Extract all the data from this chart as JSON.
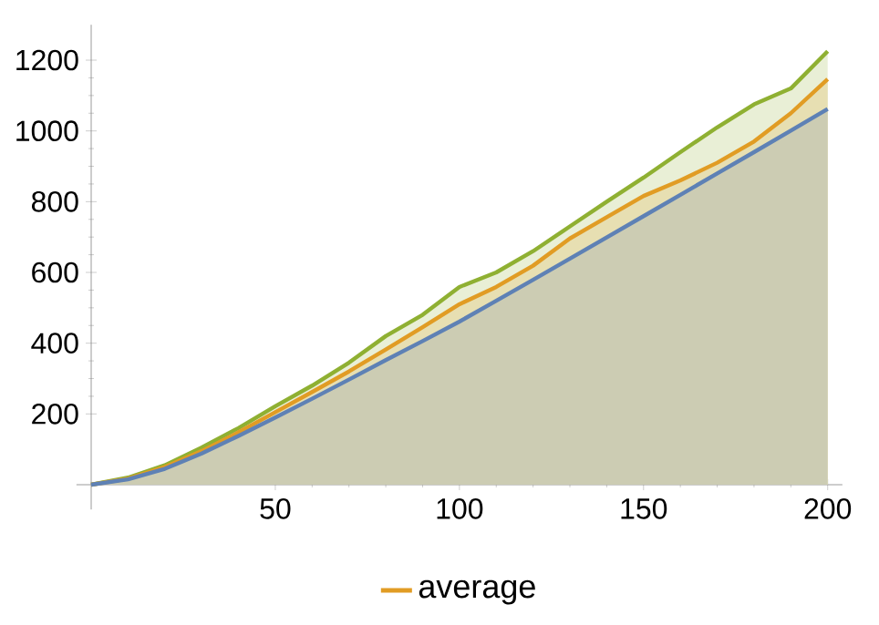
{
  "chart_data": {
    "type": "area",
    "x": [
      0,
      10,
      20,
      30,
      40,
      50,
      60,
      70,
      80,
      90,
      100,
      110,
      120,
      130,
      140,
      150,
      160,
      170,
      180,
      190,
      200
    ],
    "series": [
      {
        "color": "#8fb032",
        "values": [
          0,
          20,
          55,
          105,
          160,
          222,
          280,
          345,
          420,
          480,
          559,
          600,
          660,
          730,
          800,
          868,
          940,
          1010,
          1075,
          1120,
          1225
        ]
      },
      {
        "name": "average",
        "color": "#e19c24",
        "values": [
          0,
          17,
          50,
          95,
          148,
          205,
          262,
          320,
          382,
          445,
          510,
          559,
          619,
          696,
          756,
          816,
          860,
          910,
          970,
          1050,
          1146
        ]
      },
      {
        "color": "#5e81b5",
        "values": [
          0,
          15,
          45,
          88,
          138,
          190,
          243,
          297,
          352,
          406,
          461,
          520,
          579,
          639,
          699,
          759,
          819,
          880,
          940,
          1001,
          1062
        ]
      }
    ],
    "xlim": [
      -4,
      204
    ],
    "ylim": [
      -70,
      1300
    ],
    "xticks": [
      50,
      100,
      150,
      200
    ],
    "yticks": [
      200,
      400,
      600,
      800,
      1000,
      1200
    ],
    "grid": false,
    "legend": "bottom",
    "marker": "none",
    "line_style": "solid"
  }
}
